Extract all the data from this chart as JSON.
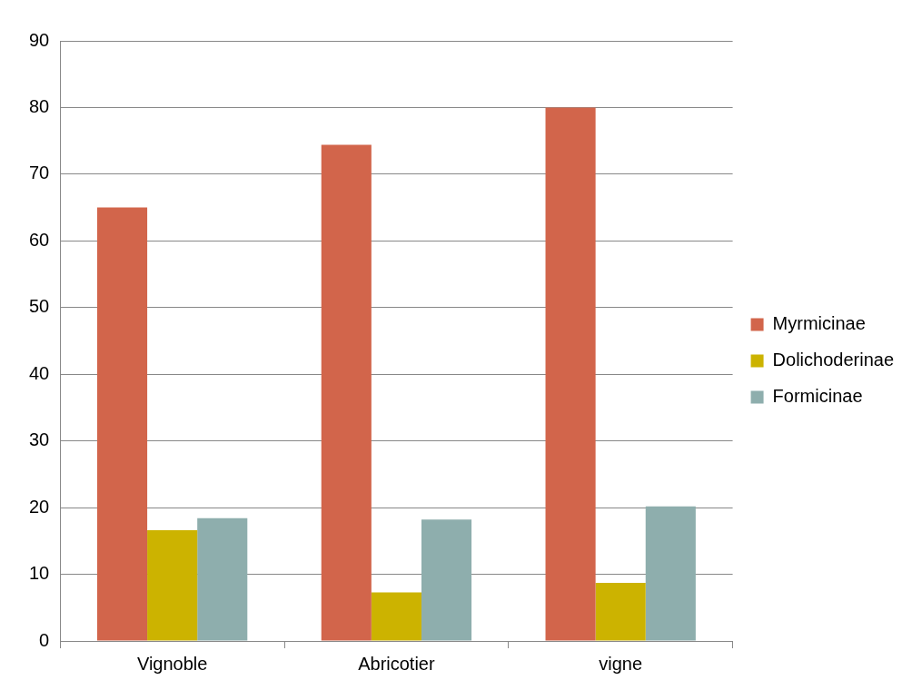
{
  "chart_data": {
    "type": "bar",
    "categories": [
      "Vignoble",
      "Abricotier",
      "vigne"
    ],
    "series": [
      {
        "name": "Myrmicinae",
        "color": "#d2654b",
        "values": [
          65,
          74.4,
          80
        ]
      },
      {
        "name": "Dolichoderinae",
        "color": "#ccb300",
        "values": [
          16.6,
          7.3,
          8.7
        ]
      },
      {
        "name": "Formicinae",
        "color": "#8eaead",
        "values": [
          18.4,
          18.2,
          20.2
        ]
      }
    ],
    "ylim": [
      0,
      90
    ],
    "yticks": [
      0,
      10,
      20,
      30,
      40,
      50,
      60,
      70,
      80,
      90
    ],
    "grid": "y",
    "legend": "right"
  }
}
